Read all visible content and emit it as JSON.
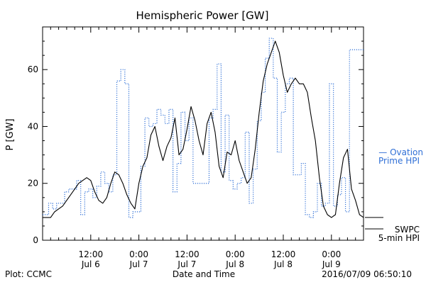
{
  "chart_data": {
    "type": "line",
    "title": "Hemispheric Power [GW]",
    "ylabel": "P [GW]",
    "xlabel": "Date and Time",
    "ylim": [
      0,
      75
    ],
    "xlim_hours": [
      0,
      80
    ],
    "yticks": [
      0,
      20,
      40,
      60
    ],
    "xticks": [
      {
        "h": 12,
        "time": "12:00",
        "date": "Jul 6"
      },
      {
        "h": 24,
        "time": "0:00",
        "date": "Jul 7"
      },
      {
        "h": 36,
        "time": "12:00",
        "date": "Jul 7"
      },
      {
        "h": 48,
        "time": "0:00",
        "date": "Jul 8"
      },
      {
        "h": 60,
        "time": "12:00",
        "date": "Jul 8"
      },
      {
        "h": 72,
        "time": "0:00",
        "date": "Jul 9"
      }
    ],
    "minor_tick_step_hours": 2,
    "series": [
      {
        "name": "Ovation Prime HPI",
        "style": "dotted-step",
        "color": "#2f6fd6",
        "x": [
          0,
          1.5,
          2.5,
          3.5,
          5.5,
          6.5,
          8.5,
          9.5,
          10.5,
          11.5,
          12.5,
          13.5,
          14.5,
          15.5,
          16.5,
          17.5,
          18.5,
          19.5,
          20.5,
          21.5,
          22.5,
          24.5,
          25.5,
          26.5,
          27.5,
          28.5,
          29.5,
          30.5,
          31.5,
          32.5,
          33.5,
          34.5,
          35.5,
          36.5,
          37.5,
          38.5,
          39.5,
          40.5,
          41.5,
          42.5,
          43.5,
          44.5,
          45.5,
          46.5,
          47.5,
          48.5,
          49.5,
          50.5,
          51.5,
          52.5,
          53.5,
          54.5,
          55.5,
          56.5,
          57.5,
          58.5,
          59.5,
          60.5,
          61.5,
          62.5,
          63.5,
          64.5,
          65.5,
          66.5,
          67.5,
          68.5,
          69.5,
          70.5,
          71.5,
          72.5,
          73.5,
          74.5,
          75.5,
          76.5,
          77.5,
          78.5,
          79.5
        ],
        "y": [
          9,
          13,
          11,
          13,
          17,
          18,
          21,
          9,
          17,
          18,
          15,
          19,
          24,
          20,
          17,
          23,
          56,
          60,
          55,
          8,
          10,
          26,
          43,
          40,
          41,
          46,
          44,
          41,
          46,
          17,
          27,
          45,
          35,
          43,
          20,
          20,
          20,
          20,
          43,
          46,
          62,
          24,
          44,
          21,
          18,
          20,
          22,
          38,
          13,
          25,
          42,
          52,
          64,
          71,
          57,
          31,
          45,
          55,
          57,
          23,
          23,
          27,
          9,
          8,
          10,
          20,
          12,
          13,
          55,
          12,
          16,
          22,
          10,
          67,
          67,
          67,
          67
        ]
      },
      {
        "name": "",
        "style": "solid",
        "color": "#000000",
        "x": [
          0,
          1,
          2,
          3,
          4,
          5,
          6,
          7,
          8,
          9,
          10,
          11,
          12,
          13,
          14,
          15,
          16,
          17,
          18,
          19,
          20,
          21,
          22,
          23,
          24,
          25,
          26,
          27,
          28,
          29,
          30,
          31,
          32,
          33,
          34,
          35,
          36,
          37,
          38,
          39,
          40,
          41,
          42,
          43,
          44,
          45,
          46,
          47,
          48,
          49,
          50,
          51,
          52,
          53,
          54,
          55,
          56,
          57,
          58,
          59,
          60,
          61,
          62,
          63,
          64,
          65,
          66,
          67,
          68,
          69,
          70,
          71,
          72,
          73,
          74,
          75,
          76,
          77,
          78,
          79,
          80
        ],
        "y": [
          8,
          8,
          8,
          10,
          11,
          12,
          14,
          16,
          18,
          20,
          21,
          22,
          21,
          17,
          14,
          13,
          15,
          20,
          24,
          23,
          20,
          16,
          13,
          11,
          20,
          26,
          29,
          37,
          40,
          33,
          28,
          33,
          36,
          43,
          30,
          32,
          39,
          47,
          42,
          35,
          30,
          41,
          45,
          38,
          26,
          22,
          31,
          30,
          35,
          28,
          24,
          20,
          22,
          32,
          45,
          56,
          62,
          66,
          70,
          66,
          58,
          52,
          55,
          57,
          55,
          55,
          52,
          43,
          35,
          22,
          12,
          9,
          8,
          9,
          20,
          29,
          32,
          18,
          14,
          9,
          8
        ]
      }
    ],
    "right_labels": {
      "ovation_line1": "— Ovation",
      "ovation_line2": "Prime HPI",
      "swpc": "SWPC",
      "hpi": "5-min HPI"
    },
    "footer": {
      "left": "Plot: CCMC",
      "right": "2016/07/09 06:50:10"
    }
  }
}
